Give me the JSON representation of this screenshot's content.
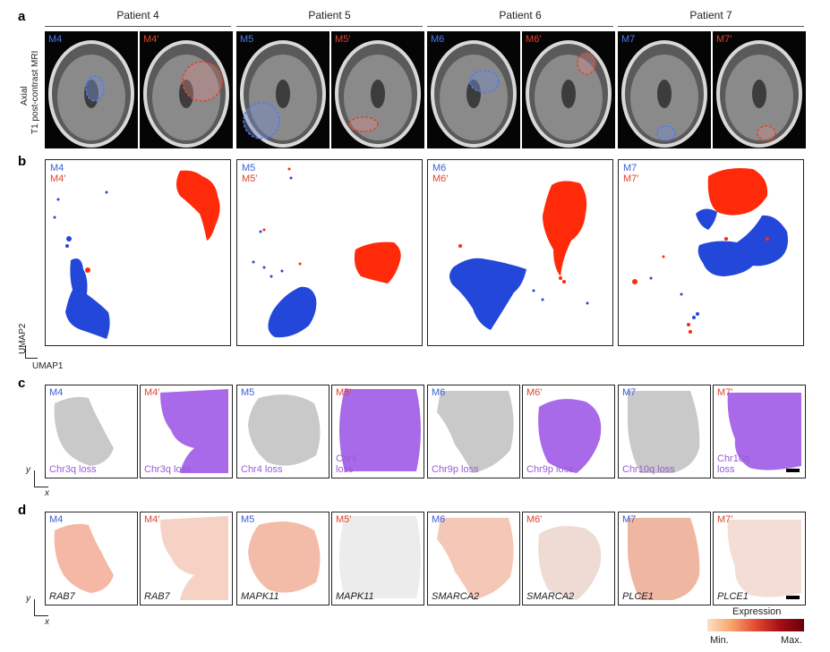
{
  "panels": {
    "a": "a",
    "b": "b",
    "c": "c",
    "d": "d"
  },
  "patients": [
    "Patient 4",
    "Patient 5",
    "Patient 6",
    "Patient 7"
  ],
  "mri": {
    "ylabel_line1": "Axial",
    "ylabel_line2": "T1 post-contrast MRI",
    "tiles": [
      {
        "label": "M4",
        "color": "#4b7bf5"
      },
      {
        "label": "M4′",
        "color": "#e0432a"
      },
      {
        "label": "M5",
        "color": "#4b7bf5"
      },
      {
        "label": "M5′",
        "color": "#e0432a"
      },
      {
        "label": "M6",
        "color": "#4b7bf5"
      },
      {
        "label": "M6′",
        "color": "#e0432a"
      },
      {
        "label": "M7",
        "color": "#4b7bf5"
      },
      {
        "label": "M7′",
        "color": "#e0432a"
      }
    ]
  },
  "umap": {
    "xlabel": "UMAP1",
    "ylabel": "UMAP2",
    "panels": [
      {
        "label_a": "M4",
        "label_b": "M4′"
      },
      {
        "label_a": "M5",
        "label_b": "M5′"
      },
      {
        "label_a": "M6",
        "label_b": "M6′"
      },
      {
        "label_a": "M7",
        "label_b": "M7′"
      }
    ],
    "colors": {
      "primary": "#2347d8",
      "recurrent": "#ff2a0a"
    }
  },
  "cnv": {
    "xlabel": "x",
    "ylabel": "y",
    "tiles": [
      {
        "tag": "M4",
        "text": "Chr3q loss"
      },
      {
        "tag": "M4′",
        "text": "Chr3q loss"
      },
      {
        "tag": "M5",
        "text": "Chr4 loss"
      },
      {
        "tag": "M5′",
        "text": "Chr4\nloss"
      },
      {
        "tag": "M6",
        "text": "Chr9p loss"
      },
      {
        "tag": "M6′",
        "text": "Chr9p loss"
      },
      {
        "tag": "M7",
        "text": "Chr10q loss"
      },
      {
        "tag": "M7′",
        "text": "Chr10q\nloss"
      }
    ],
    "colors": {
      "loss": "#a86ae8",
      "neutral": "#c9c9c9"
    }
  },
  "expr": {
    "xlabel": "x",
    "ylabel": "y",
    "tiles": [
      {
        "tag": "M4",
        "gene": "RAB7"
      },
      {
        "tag": "M4′",
        "gene": "RAB7"
      },
      {
        "tag": "M5",
        "gene": "MAPK11"
      },
      {
        "tag": "M5′",
        "gene": "MAPK11"
      },
      {
        "tag": "M6",
        "gene": "SMARCA2"
      },
      {
        "tag": "M6′",
        "gene": "SMARCA2"
      },
      {
        "tag": "M7",
        "gene": "PLCE1"
      },
      {
        "tag": "M7′",
        "gene": "PLCE1"
      }
    ],
    "legend": {
      "title": "Expression",
      "min": "Min.",
      "max": "Max."
    }
  }
}
